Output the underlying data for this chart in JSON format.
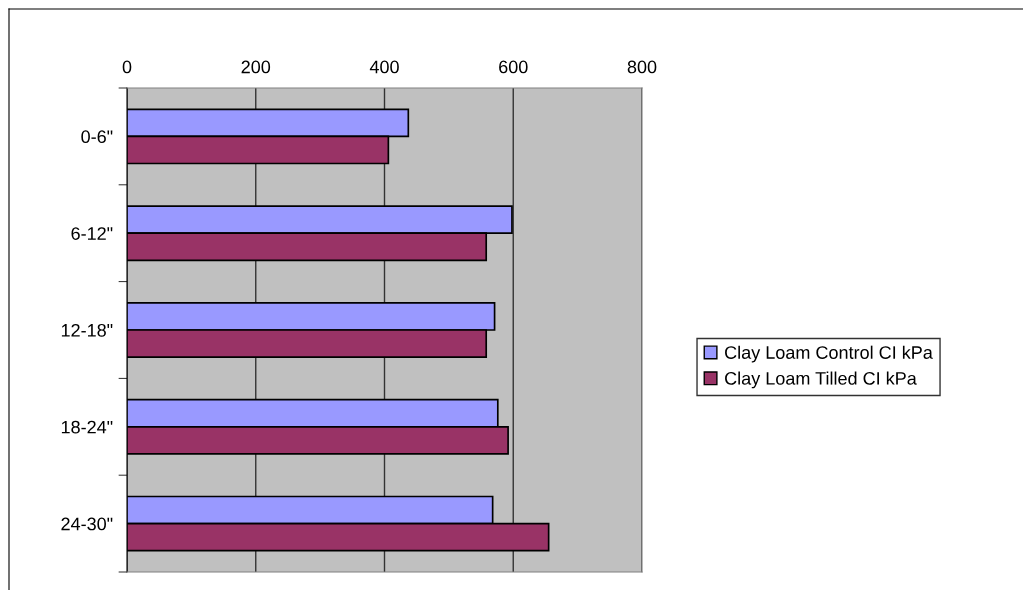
{
  "chart_data": {
    "type": "bar",
    "orientation": "horizontal",
    "categories": [
      "0-6\"",
      "6-12\"",
      "12-18\"",
      "18-24\"",
      "24-30\""
    ],
    "series": [
      {
        "name": "Clay Loam Control CI kPa",
        "color": "#9999ff",
        "values": [
          437,
          598,
          571,
          576,
          568
        ]
      },
      {
        "name": "Clay Loam Tilled CI kPa",
        "color": "#993366",
        "values": [
          406,
          558,
          558,
          592,
          655
        ]
      }
    ],
    "xlim": [
      0,
      800
    ],
    "xticks": [
      0,
      200,
      400,
      600,
      800
    ],
    "grid": "x",
    "legend": "right"
  }
}
